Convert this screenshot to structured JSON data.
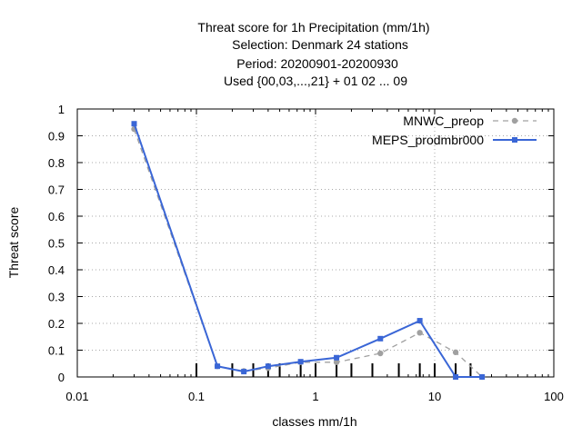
{
  "chart_data": {
    "type": "line",
    "title_lines": [
      "Threat score  for 1h Precipitation (mm/1h)",
      "Selection: Denmark     24 stations",
      "Period: 20200901-20200930",
      "Used {00,03,...,21} + 01 02 ... 09"
    ],
    "xlabel": "classes mm/1h",
    "ylabel": "Threat score",
    "x_scale": "log",
    "xlim": [
      0.01,
      100
    ],
    "ylim": [
      0,
      1
    ],
    "x_ticks": [
      0.01,
      0.1,
      1,
      10,
      100
    ],
    "x_tick_labels": [
      "0.01",
      "0.1",
      "1",
      "10",
      "100"
    ],
    "y_ticks": [
      0,
      0.1,
      0.2,
      0.3,
      0.4,
      0.5,
      0.6,
      0.7,
      0.8,
      0.9,
      1
    ],
    "y_tick_labels": [
      "0",
      "0.1",
      "0.2",
      "0.3",
      "0.4",
      "0.5",
      "0.6",
      "0.7",
      "0.8",
      "0.9",
      "1"
    ],
    "grid": true,
    "legend_position": "top-right",
    "class_thresholds": [
      0.1,
      0.2,
      0.3,
      0.4,
      0.5,
      0.75,
      1,
      1.5,
      2,
      3,
      5,
      7.5,
      10,
      15,
      20
    ],
    "series": [
      {
        "name": "MNWC_preop",
        "color": "#a0a0a0",
        "dash": true,
        "x": [
          0.03,
          0.15,
          0.25,
          0.4,
          0.75,
          1.5,
          3.5,
          7.5,
          15,
          25
        ],
        "y": [
          0.925,
          0.04,
          0.022,
          0.033,
          0.055,
          0.055,
          0.088,
          0.165,
          0.092,
          0.0
        ]
      },
      {
        "name": "MEPS_prodmbr000",
        "color": "#3a66d6",
        "dash": false,
        "x": [
          0.03,
          0.15,
          0.25,
          0.4,
          0.75,
          1.5,
          3.5,
          7.5,
          15,
          25
        ],
        "y": [
          0.945,
          0.04,
          0.02,
          0.04,
          0.057,
          0.072,
          0.143,
          0.21,
          0.0,
          0.0
        ]
      }
    ]
  }
}
